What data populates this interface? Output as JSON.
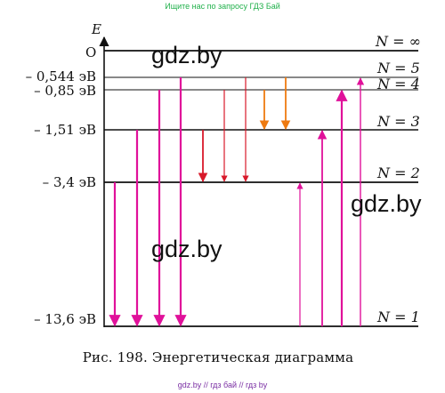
{
  "header": {
    "site_link": "Ищите нас по запросу ГДЗ Бай"
  },
  "footer": {
    "site_links": "gdz.by  //  гдз бай  //  гдз by"
  },
  "watermark": "gdz.by",
  "caption": "Рис. 198. Энергетическая диаграмма",
  "axis": {
    "y_label": "E",
    "origin_label": "O"
  },
  "levels": [
    {
      "n_label": "N = ∞",
      "energy_label": "",
      "energy": 0
    },
    {
      "n_label": "N = 5",
      "energy_label": "– 0,544 эВ",
      "energy": -0.544
    },
    {
      "n_label": "N = 4",
      "energy_label": "– 0,85 эВ",
      "energy": -0.85
    },
    {
      "n_label": "N = 3",
      "energy_label": "– 1,51 эВ",
      "energy": -1.51
    },
    {
      "n_label": "N = 2",
      "energy_label": "– 3,4 эВ",
      "energy": -3.4
    },
    {
      "n_label": "N = 1",
      "energy_label": "– 13,6 эВ",
      "energy": -13.6
    }
  ],
  "colors": {
    "emission_to_1": "#e0119a",
    "emission_to_2": "#d8192a",
    "emission_to_3": "#ee7a10",
    "absorption": "#e0119a",
    "level_line": "#111111"
  },
  "transitions": [
    {
      "group": "emission_to_1",
      "from": "N = 2",
      "to": "N = 1"
    },
    {
      "group": "emission_to_1",
      "from": "N = 3",
      "to": "N = 1"
    },
    {
      "group": "emission_to_1",
      "from": "N = 4",
      "to": "N = 1"
    },
    {
      "group": "emission_to_1",
      "from": "N = 5",
      "to": "N = 1"
    },
    {
      "group": "emission_to_2",
      "from": "N = 3",
      "to": "N = 2"
    },
    {
      "group": "emission_to_2",
      "from": "N = 4",
      "to": "N = 2"
    },
    {
      "group": "emission_to_2",
      "from": "N = 5",
      "to": "N = 2"
    },
    {
      "group": "emission_to_3",
      "from": "N = 4",
      "to": "N = 3"
    },
    {
      "group": "emission_to_3",
      "from": "N = 5",
      "to": "N = 3"
    },
    {
      "group": "absorption",
      "from": "N = 1",
      "to": "N = 2"
    },
    {
      "group": "absorption",
      "from": "N = 1",
      "to": "N = 3"
    },
    {
      "group": "absorption",
      "from": "N = 1",
      "to": "N = 4"
    },
    {
      "group": "absorption",
      "from": "N = 1",
      "to": "N = 5"
    }
  ]
}
